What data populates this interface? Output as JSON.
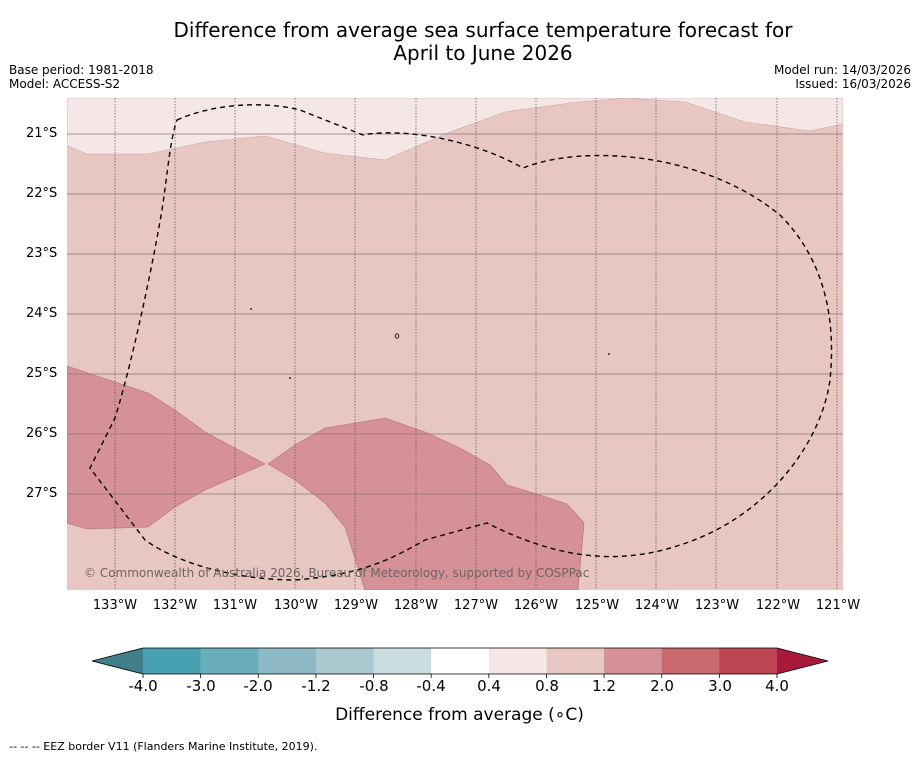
{
  "title_line1": "Difference from average sea surface temperature forecast for",
  "title_line2": "April to June 2026",
  "base_period": "Base period: 1981-2018",
  "model": "Model: ACCESS-S2",
  "model_run": "Model run: 14/03/2026",
  "issued": "Issued: 16/03/2026",
  "copyright": "© Commonwealth of Australia 2026, Bureau of Meteorology, supported by COSPPac",
  "footnote": "--  --  -- EEZ border V11 (Flanders Marine Institute, 2019).",
  "lat_labels": [
    "21°S",
    "22°S",
    "23°S",
    "24°S",
    "25°S",
    "26°S",
    "27°S"
  ],
  "lon_labels": [
    "133°W",
    "132°W",
    "131°W",
    "130°W",
    "129°W",
    "128°W",
    "127°W",
    "126°W",
    "125°W",
    "124°W",
    "123°W",
    "122°W",
    "121°W"
  ],
  "colorbar": {
    "title": "Difference from average (∘C)",
    "ticks": [
      "-4.0",
      "-3.0",
      "-2.0",
      "-1.2",
      "-0.8",
      "-0.4",
      "0.4",
      "0.8",
      "1.2",
      "2.0",
      "3.0",
      "4.0"
    ],
    "colors": [
      "#3f7f8a",
      "#48a0b3",
      "#6aaebe",
      "#8db8c6",
      "#aac8cf",
      "#c9dce0",
      "#ffffff",
      "#f5e7e6",
      "#e8c6c2",
      "#d69098",
      "#ca6870",
      "#be4553",
      "#a8193c"
    ]
  },
  "legend_colors": {
    "band_0_4_0_8": "#f5e7e6",
    "band_0_8_1_2": "#e8c6c2",
    "band_1_2_2_0": "#d69098",
    "ocean_border": "#000000"
  }
}
